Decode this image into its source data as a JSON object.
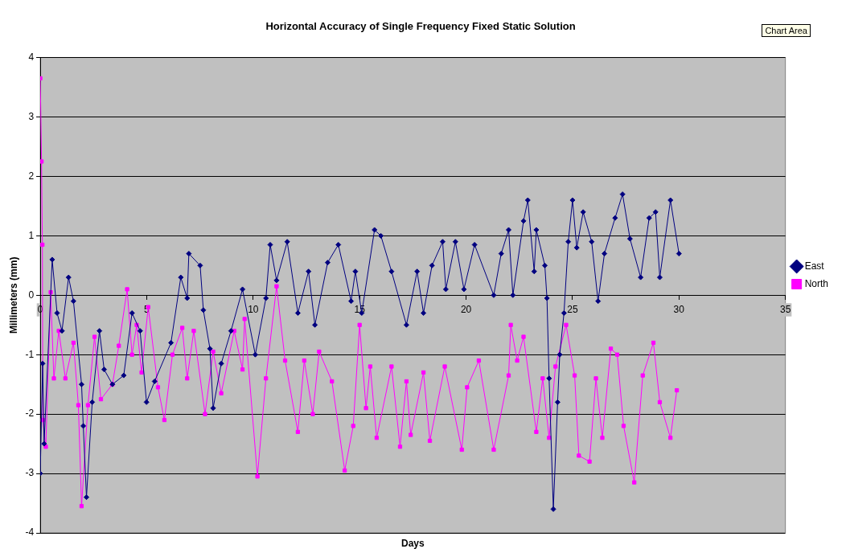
{
  "chart_data": {
    "type": "line",
    "title": "Horizontal Accuracy of Single Frequency Fixed Static Solution",
    "xlabel": "Days",
    "ylabel": "Millimeters (mm)",
    "xlim": [
      0,
      35
    ],
    "xticks": [
      0,
      5,
      10,
      15,
      20,
      25,
      30,
      35
    ],
    "ylim": [
      -4,
      4
    ],
    "yticks": [
      -4,
      -3,
      -2,
      -1,
      0,
      1,
      2,
      3,
      4
    ],
    "grid": "y",
    "legend": "right",
    "annotations": [
      "Chart Area"
    ],
    "series": [
      {
        "name": "East",
        "color": "#000080",
        "marker": "diamond",
        "x": [
          0,
          0.11,
          0.18,
          0.56,
          0.79,
          1.02,
          1.33,
          1.56,
          1.94,
          2.02,
          2.17,
          2.44,
          2.78,
          3.0,
          3.39,
          3.92,
          4.31,
          4.69,
          4.99,
          5.37,
          6.14,
          6.6,
          6.9,
          6.98,
          7.51,
          7.66,
          7.97,
          8.12,
          8.5,
          8.96,
          9.5,
          10.1,
          10.6,
          10.8,
          11.1,
          11.6,
          12.1,
          12.6,
          12.9,
          13.5,
          14.0,
          14.6,
          14.8,
          15.1,
          15.7,
          16.0,
          16.5,
          17.2,
          17.7,
          18.0,
          18.4,
          18.9,
          19.05,
          19.5,
          19.9,
          20.4,
          21.3,
          21.65,
          22.0,
          22.2,
          22.7,
          22.9,
          23.2,
          23.3,
          23.7,
          23.8,
          23.9,
          24.1,
          24.3,
          24.4,
          24.6,
          24.8,
          25.0,
          25.2,
          25.5,
          25.9,
          26.2,
          26.5,
          27.0,
          27.35,
          27.7,
          28.2,
          28.6,
          28.9,
          29.1,
          29.6,
          30.0
        ],
        "values": [
          -3.0,
          -1.15,
          -2.5,
          0.6,
          -0.3,
          -0.6,
          0.3,
          -0.1,
          -1.5,
          -2.2,
          -3.4,
          -1.8,
          -0.6,
          -1.25,
          -1.5,
          -1.35,
          -0.3,
          -0.6,
          -1.8,
          -1.45,
          -0.8,
          0.3,
          -0.05,
          0.7,
          0.5,
          -0.25,
          -0.9,
          -1.9,
          -1.15,
          -0.6,
          0.1,
          -1.0,
          -0.05,
          0.85,
          0.25,
          0.9,
          -0.3,
          0.4,
          -0.5,
          0.55,
          0.85,
          -0.1,
          0.4,
          -0.3,
          1.1,
          1.0,
          0.4,
          -0.5,
          0.4,
          -0.3,
          0.5,
          0.9,
          0.1,
          0.9,
          0.1,
          0.85,
          0.0,
          0.7,
          1.1,
          0.0,
          1.25,
          1.6,
          0.4,
          1.1,
          0.5,
          -0.05,
          -1.4,
          -3.6,
          -1.8,
          -1.0,
          -0.3,
          0.9,
          1.6,
          0.8,
          1.4,
          0.9,
          -0.1,
          0.7,
          1.3,
          1.7,
          0.95,
          0.3,
          1.3,
          1.4,
          0.3,
          1.6,
          0.7
        ]
      },
      {
        "name": "North",
        "color": "#ff00ff",
        "marker": "square",
        "x": [
          0,
          0.06,
          0.1,
          0.12,
          0.26,
          0.49,
          0.64,
          0.87,
          1.18,
          1.56,
          1.79,
          1.94,
          2.24,
          2.55,
          2.85,
          3.39,
          3.69,
          4.08,
          4.31,
          4.53,
          4.76,
          5.07,
          5.53,
          5.83,
          6.21,
          6.67,
          6.9,
          7.21,
          7.74,
          8.12,
          8.5,
          9.11,
          9.5,
          9.6,
          10.2,
          10.6,
          11.1,
          11.5,
          12.1,
          12.4,
          12.8,
          13.1,
          13.7,
          14.3,
          14.7,
          15.0,
          15.3,
          15.5,
          15.8,
          16.5,
          16.9,
          17.2,
          17.4,
          18.0,
          18.3,
          19.0,
          19.8,
          20.05,
          20.6,
          21.3,
          22.0,
          22.1,
          22.4,
          22.7,
          23.3,
          23.6,
          23.9,
          24.2,
          24.7,
          25.1,
          25.3,
          25.8,
          26.1,
          26.4,
          26.8,
          27.1,
          27.4,
          27.9,
          28.3,
          28.8,
          29.1,
          29.6,
          29.9
        ],
        "values": [
          3.65,
          2.25,
          0.85,
          -2.1,
          -2.55,
          0.05,
          -1.4,
          -0.6,
          -1.4,
          -0.8,
          -1.85,
          -3.55,
          -1.85,
          -0.7,
          -1.75,
          -1.5,
          -0.85,
          0.1,
          -1.0,
          -0.5,
          -1.3,
          -0.2,
          -1.55,
          -2.1,
          -1.0,
          -0.55,
          -1.4,
          -0.6,
          -2.0,
          -0.95,
          -1.65,
          -0.6,
          -1.25,
          -0.4,
          -3.05,
          -1.4,
          0.15,
          -1.1,
          -2.3,
          -1.1,
          -2.0,
          -0.95,
          -1.45,
          -2.95,
          -2.2,
          -0.5,
          -1.9,
          -1.2,
          -2.4,
          -1.2,
          -2.55,
          -1.45,
          -2.35,
          -1.3,
          -2.45,
          -1.2,
          -2.6,
          -1.55,
          -1.1,
          -2.6,
          -1.35,
          -0.5,
          -1.1,
          -0.7,
          -2.3,
          -1.4,
          -2.4,
          -1.2,
          -0.5,
          -1.35,
          -2.7,
          -2.8,
          -1.4,
          -2.4,
          -0.9,
          -1.0,
          -2.2,
          -3.15,
          -1.35,
          -0.8,
          -1.8,
          -2.4,
          -1.6
        ]
      }
    ]
  }
}
